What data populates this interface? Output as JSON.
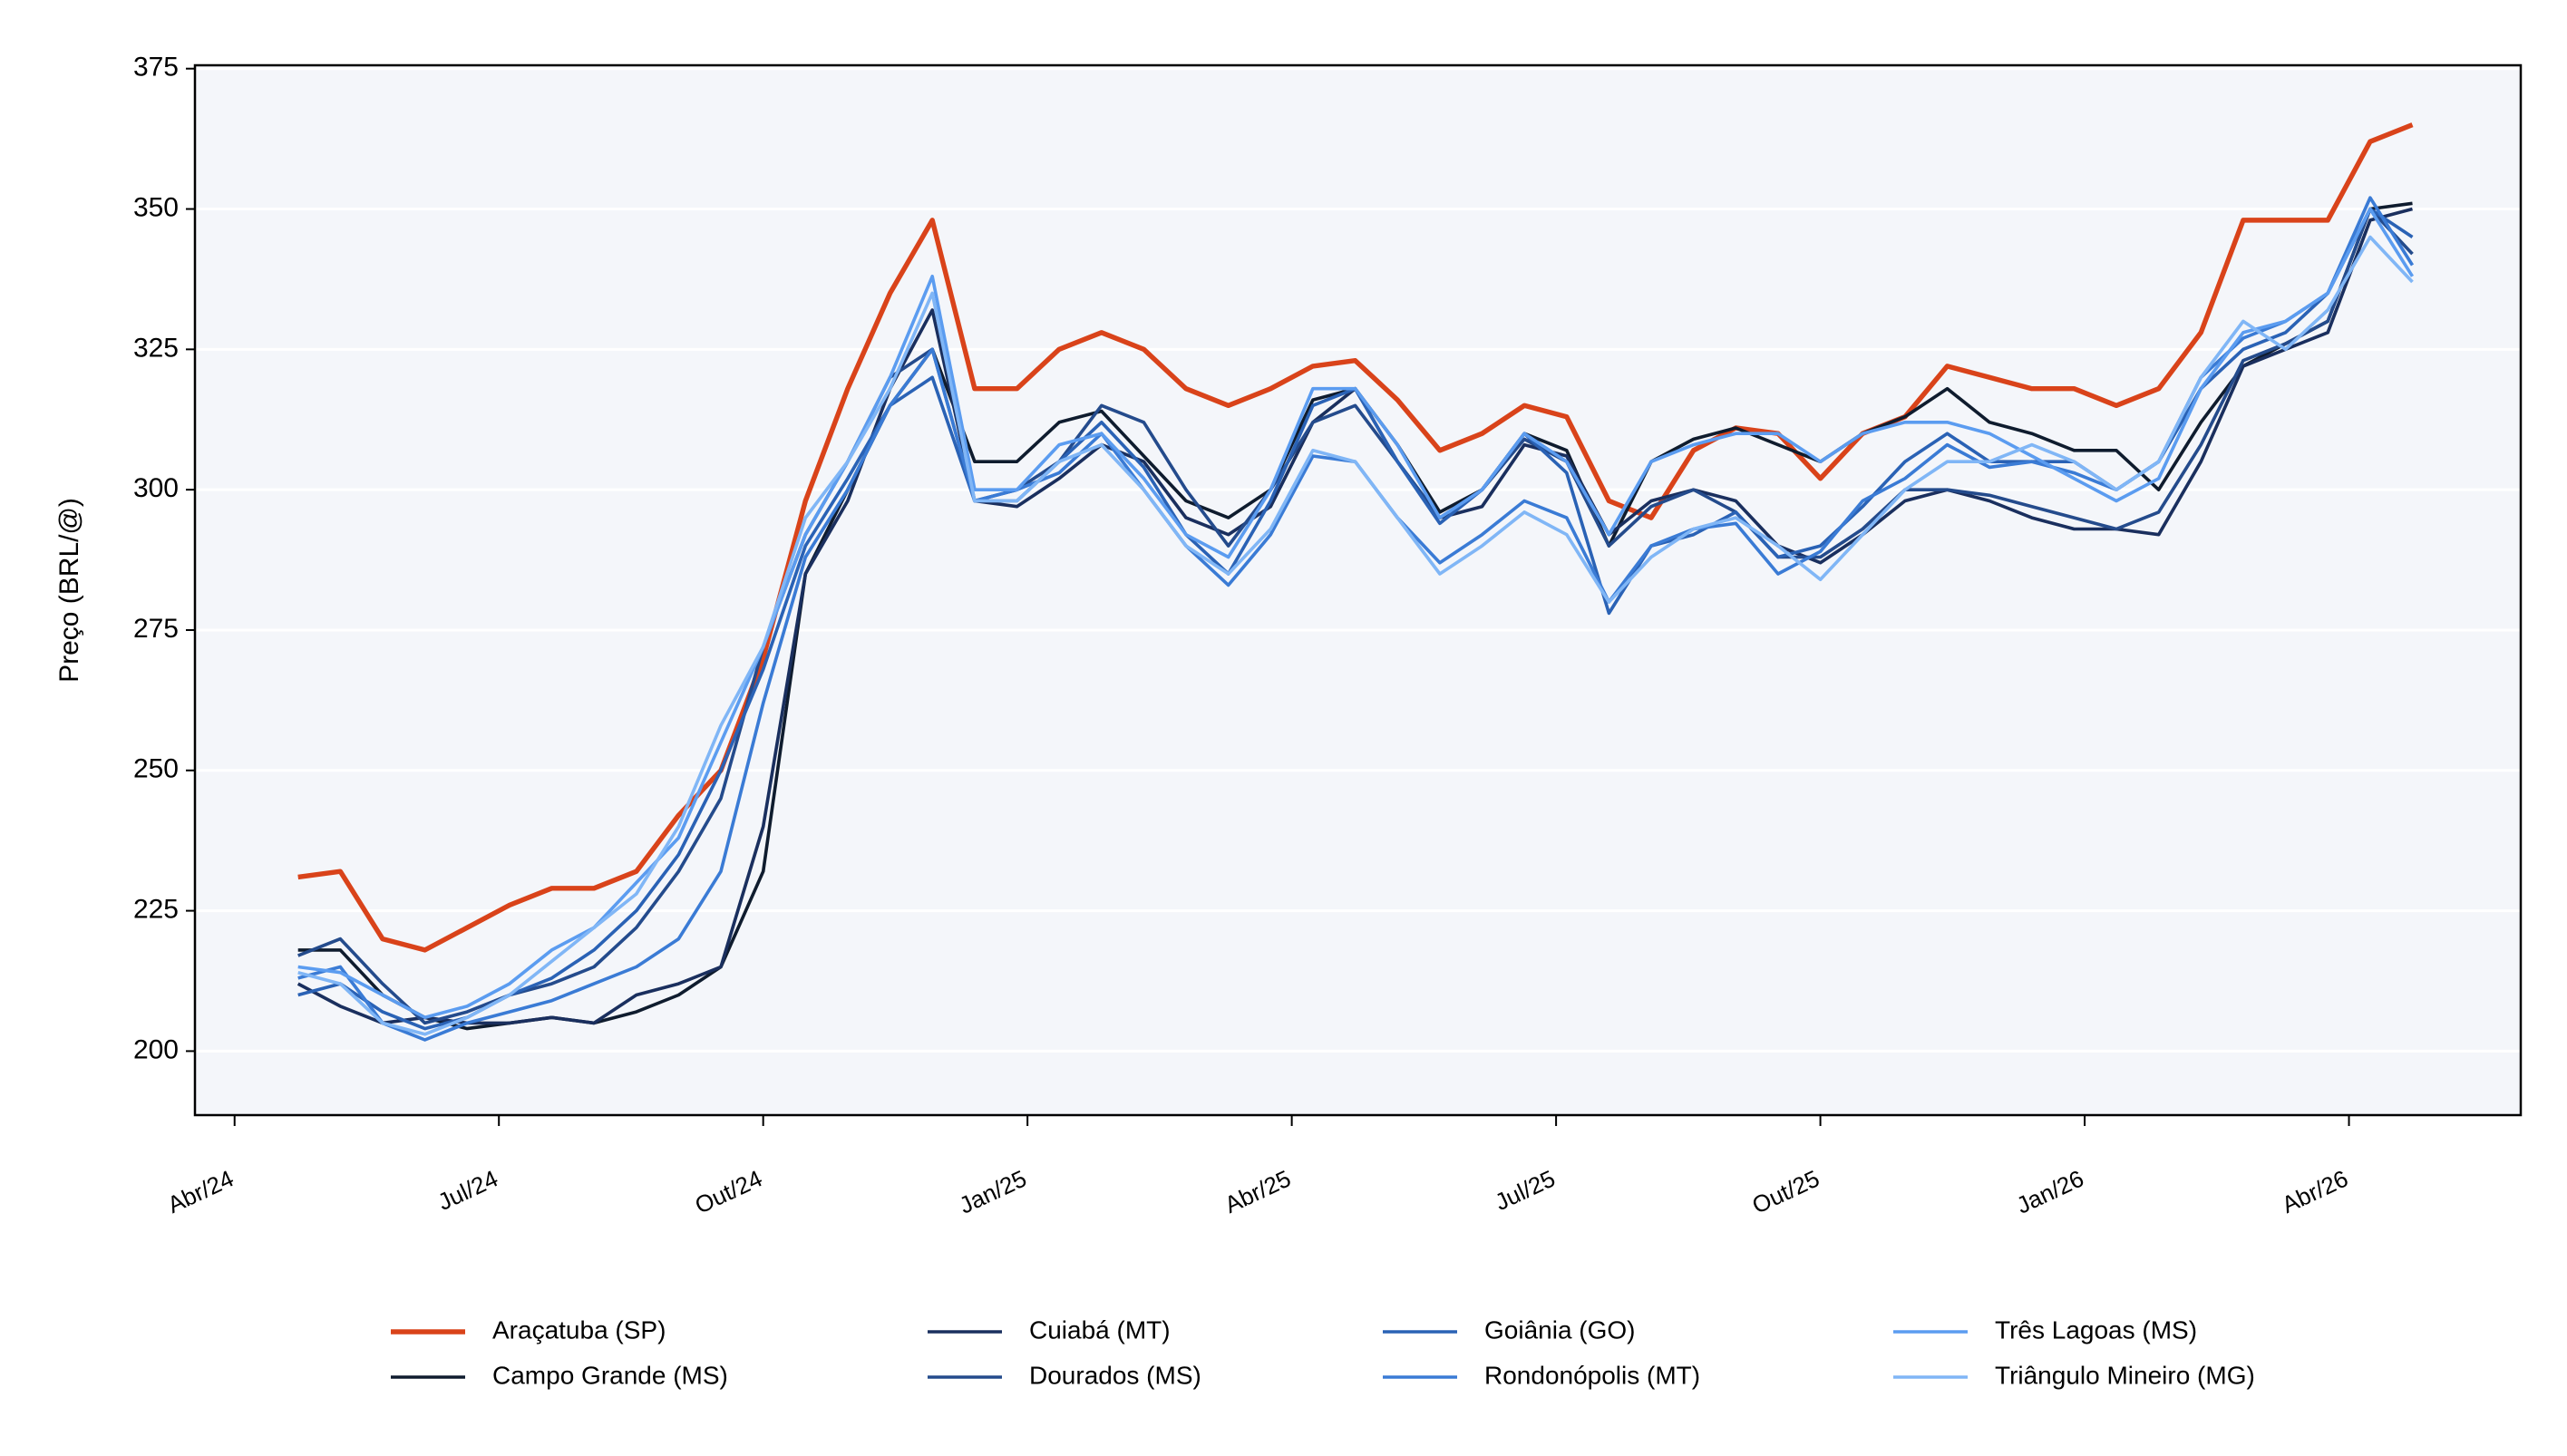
{
  "chart_data": {
    "type": "line",
    "y_label": "Preço (BRL/@)",
    "x": [
      2024.31,
      2024.35,
      2024.39,
      2024.43,
      2024.47,
      2024.51,
      2024.55,
      2024.59,
      2024.63,
      2024.67,
      2024.71,
      2024.75,
      2024.79,
      2024.83,
      2024.87,
      2024.91,
      2024.95,
      2024.99,
      2025.03,
      2025.07,
      2025.11,
      2025.15,
      2025.19,
      2025.23,
      2025.27,
      2025.31,
      2025.35,
      2025.39,
      2025.43,
      2025.47,
      2025.51,
      2025.55,
      2025.59,
      2025.63,
      2025.67,
      2025.71,
      2025.75,
      2025.79,
      2025.83,
      2025.87,
      2025.91,
      2025.95,
      2025.99,
      2026.03,
      2026.07,
      2026.11,
      2026.15,
      2026.19,
      2026.23,
      2026.27,
      2026.31
    ],
    "xlim": [
      2024.2125,
      2026.4125
    ],
    "xticks": [
      {
        "value": 2024.25,
        "label": "Abr/24"
      },
      {
        "value": 2024.5,
        "label": "Jul/24"
      },
      {
        "value": 2024.75,
        "label": "Out/24"
      },
      {
        "value": 2025.0,
        "label": "Jan/25"
      },
      {
        "value": 2025.25,
        "label": "Abr/25"
      },
      {
        "value": 2025.5,
        "label": "Jul/25"
      },
      {
        "value": 2025.75,
        "label": "Out/25"
      },
      {
        "value": 2026.0,
        "label": "Jan/26"
      },
      {
        "value": 2026.25,
        "label": "Abr/26"
      }
    ],
    "ylim": [
      188.6,
      375.6
    ],
    "yticks": [
      200,
      225,
      250,
      275,
      300,
      325,
      350,
      375
    ],
    "grid": true,
    "legend": "lower center",
    "series": [
      {
        "name": "Araçatuba (SP)",
        "color": "#d9431a",
        "linewidth": 3,
        "values": [
          231,
          232,
          220,
          218,
          222,
          226,
          229,
          229,
          232,
          242,
          250,
          270,
          298,
          318,
          335,
          348,
          318,
          318,
          325,
          328,
          325,
          318,
          315,
          318,
          322,
          323,
          316,
          307,
          310,
          315,
          313,
          298,
          295,
          307,
          311,
          310,
          302,
          310,
          313,
          322,
          320,
          318,
          318,
          315,
          318,
          328,
          348,
          348,
          348,
          362,
          365
        ]
      },
      {
        "name": "Campo Grande (MS)",
        "color": "#0f1c2e",
        "linewidth": 2,
        "values": [
          218,
          218,
          210,
          206,
          204,
          205,
          206,
          205,
          207,
          210,
          215,
          232,
          285,
          300,
          315,
          325,
          305,
          305,
          312,
          314,
          306,
          298,
          295,
          300,
          316,
          318,
          308,
          296,
          300,
          310,
          307,
          290,
          305,
          309,
          311,
          308,
          305,
          310,
          313,
          318,
          312,
          310,
          307,
          307,
          300,
          312,
          322,
          326,
          330,
          350,
          351
        ]
      },
      {
        "name": "Cuiabá (MT)",
        "color": "#1a2f5e",
        "linewidth": 2,
        "values": [
          212,
          208,
          205,
          206,
          205,
          205,
          206,
          205,
          210,
          212,
          215,
          240,
          285,
          298,
          318,
          332,
          298,
          297,
          302,
          308,
          305,
          295,
          292,
          297,
          312,
          318,
          305,
          295,
          297,
          308,
          306,
          292,
          298,
          300,
          298,
          290,
          287,
          292,
          298,
          300,
          298,
          295,
          293,
          293,
          292,
          305,
          322,
          325,
          328,
          348,
          350
        ]
      },
      {
        "name": "Dourados (MS)",
        "color": "#244b8c",
        "linewidth": 2,
        "values": [
          217,
          220,
          212,
          205,
          207,
          210,
          212,
          215,
          222,
          232,
          245,
          272,
          292,
          305,
          320,
          325,
          298,
          300,
          305,
          315,
          312,
          300,
          290,
          300,
          312,
          315,
          305,
          295,
          300,
          309,
          305,
          290,
          297,
          300,
          296,
          288,
          288,
          293,
          300,
          300,
          299,
          297,
          295,
          293,
          296,
          308,
          323,
          326,
          330,
          350,
          342
        ]
      },
      {
        "name": "Goiânia (GO)",
        "color": "#2a62b5",
        "linewidth": 2,
        "values": [
          210,
          212,
          207,
          204,
          206,
          210,
          213,
          218,
          225,
          235,
          250,
          268,
          290,
          302,
          315,
          320,
          298,
          298,
          305,
          312,
          304,
          292,
          285,
          298,
          315,
          318,
          305,
          294,
          300,
          310,
          303,
          278,
          290,
          292,
          296,
          288,
          290,
          297,
          305,
          310,
          305,
          305,
          305,
          300,
          305,
          318,
          325,
          328,
          335,
          350,
          345
        ]
      },
      {
        "name": "Rondonópolis (MT)",
        "color": "#3a7bd5",
        "linewidth": 2,
        "values": [
          213,
          215,
          205,
          202,
          205,
          207,
          209,
          212,
          215,
          220,
          232,
          262,
          288,
          300,
          315,
          325,
          298,
          300,
          303,
          310,
          300,
          290,
          283,
          292,
          306,
          305,
          295,
          287,
          292,
          298,
          295,
          280,
          290,
          293,
          294,
          285,
          289,
          298,
          302,
          308,
          304,
          305,
          303,
          300,
          305,
          320,
          327,
          330,
          335,
          352,
          340
        ]
      },
      {
        "name": "Três Lagoas (MS)",
        "color": "#5b9cf0",
        "linewidth": 2,
        "values": [
          215,
          214,
          210,
          206,
          208,
          212,
          218,
          222,
          230,
          238,
          255,
          272,
          292,
          305,
          320,
          338,
          300,
          300,
          308,
          310,
          302,
          292,
          288,
          300,
          318,
          318,
          308,
          295,
          300,
          310,
          305,
          292,
          305,
          308,
          310,
          310,
          305,
          310,
          312,
          312,
          310,
          306,
          302,
          298,
          302,
          318,
          328,
          330,
          335,
          350,
          338
        ]
      },
      {
        "name": "Triângulo Mineiro (MG)",
        "color": "#80b6f6",
        "linewidth": 2,
        "values": [
          214,
          212,
          205,
          203,
          206,
          210,
          216,
          222,
          228,
          240,
          258,
          272,
          295,
          305,
          318,
          335,
          298,
          298,
          305,
          308,
          300,
          290,
          285,
          293,
          307,
          305,
          295,
          285,
          290,
          296,
          292,
          280,
          288,
          293,
          295,
          290,
          284,
          292,
          300,
          305,
          305,
          308,
          305,
          300,
          305,
          320,
          330,
          325,
          332,
          345,
          337
        ]
      }
    ]
  }
}
